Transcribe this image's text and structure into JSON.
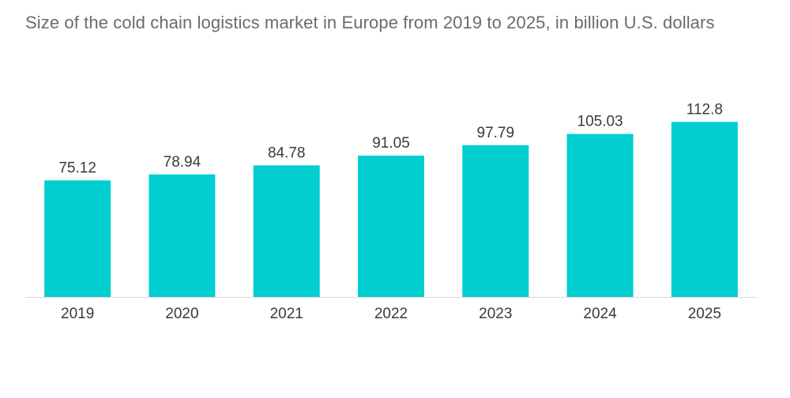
{
  "chart_data": {
    "type": "bar",
    "title": "Size of the cold chain logistics market in Europe from 2019 to 2025, in billion U.S. dollars",
    "categories": [
      "2019",
      "2020",
      "2021",
      "2022",
      "2023",
      "2024",
      "2025"
    ],
    "values": [
      75.12,
      78.94,
      84.78,
      91.05,
      97.79,
      105.03,
      112.8
    ],
    "value_labels": [
      "75.12",
      "78.94",
      "84.78",
      "91.05",
      "97.79",
      "105.03",
      "112.8"
    ],
    "xlabel": "",
    "ylabel": "",
    "ylim": [
      0,
      120
    ],
    "grid": false,
    "legend": "none",
    "bar_color": "#00ced1",
    "axis_color": "#d9d9d9"
  }
}
